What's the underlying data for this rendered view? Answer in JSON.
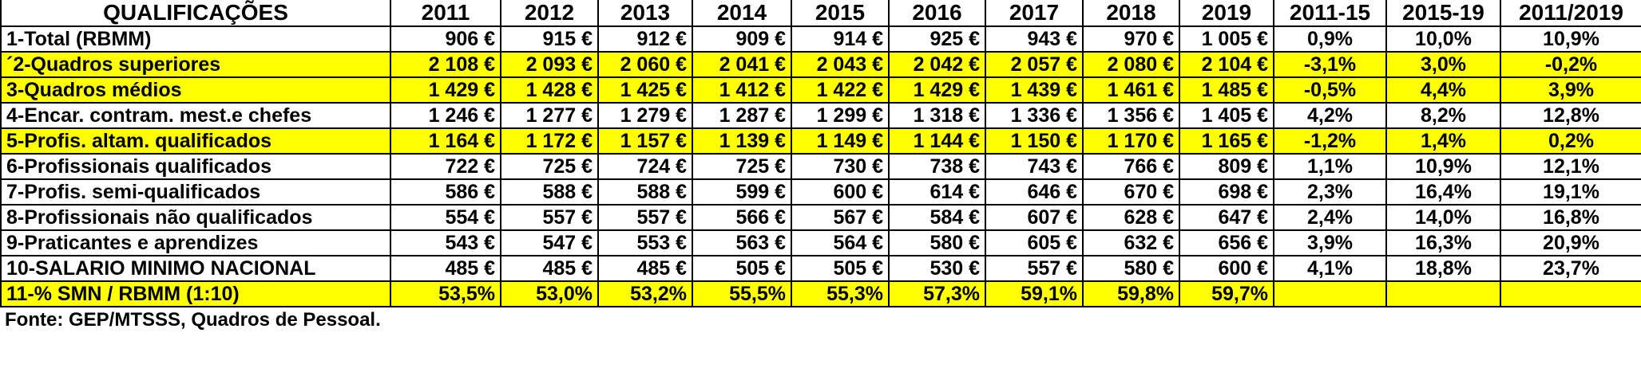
{
  "table": {
    "highlight_color": "#ffff00",
    "header": [
      "QUALIFICAÇÕES",
      "2011",
      "2012",
      "2013",
      "2014",
      "2015",
      "2016",
      "2017",
      "2018",
      "2019",
      "2011-15",
      "2015-19",
      "2011/2019"
    ],
    "rows": [
      {
        "highlighted": false,
        "cells": [
          "1-Total (RBMM)",
          "906 €",
          "915 €",
          "912 €",
          "909 €",
          "914 €",
          "925 €",
          "943 €",
          "970 €",
          "1 005 €",
          "0,9%",
          "10,0%",
          "10,9%"
        ]
      },
      {
        "highlighted": true,
        "cells": [
          "´2-Quadros superiores",
          "2 108 €",
          "2 093 €",
          "2 060 €",
          "2 041 €",
          "2 043 €",
          "2 042 €",
          "2 057 €",
          "2 080 €",
          "2 104 €",
          "-3,1%",
          "3,0%",
          "-0,2%"
        ]
      },
      {
        "highlighted": true,
        "cells": [
          "3-Quadros médios",
          "1 429 €",
          "1 428 €",
          "1 425 €",
          "1 412 €",
          "1 422 €",
          "1 429 €",
          "1 439 €",
          "1 461 €",
          "1 485 €",
          "-0,5%",
          "4,4%",
          "3,9%"
        ]
      },
      {
        "highlighted": false,
        "cells": [
          "4-Encar. contram. mest.e chefes",
          "1 246 €",
          "1 277 €",
          "1 279 €",
          "1 287 €",
          "1 299 €",
          "1 318 €",
          "1 336 €",
          "1 356 €",
          "1 405 €",
          "4,2%",
          "8,2%",
          "12,8%"
        ]
      },
      {
        "highlighted": true,
        "cells": [
          "5-Profis. altam. qualificados",
          "1 164 €",
          "1 172 €",
          "1 157 €",
          "1 139 €",
          "1 149 €",
          "1 144 €",
          "1 150 €",
          "1 170 €",
          "1 165 €",
          "-1,2%",
          "1,4%",
          "0,2%"
        ]
      },
      {
        "highlighted": false,
        "cells": [
          "6-Profissionais qualificados",
          "722 €",
          "725 €",
          "724 €",
          "725 €",
          "730 €",
          "738 €",
          "743 €",
          "766 €",
          "809 €",
          "1,1%",
          "10,9%",
          "12,1%"
        ]
      },
      {
        "highlighted": false,
        "cells": [
          "7-Profis. semi-qualificados",
          "586 €",
          "588 €",
          "588 €",
          "599 €",
          "600 €",
          "614 €",
          "646 €",
          "670 €",
          "698 €",
          "2,3%",
          "16,4%",
          "19,1%"
        ]
      },
      {
        "highlighted": false,
        "cells": [
          "8-Profissionais não qualificados",
          "554 €",
          "557 €",
          "557 €",
          "566 €",
          "567 €",
          "584 €",
          "607 €",
          "628 €",
          "647 €",
          "2,4%",
          "14,0%",
          "16,8%"
        ]
      },
      {
        "highlighted": false,
        "cells": [
          "9-Praticantes e aprendizes",
          "543 €",
          "547 €",
          "553 €",
          "563 €",
          "564 €",
          "580 €",
          "605 €",
          "632 €",
          "656 €",
          "3,9%",
          "16,3%",
          "20,9%"
        ]
      },
      {
        "highlighted": false,
        "cells": [
          "10-SALARIO MINIMO NACIONAL",
          "485 €",
          "485 €",
          "485 €",
          "505 €",
          "505 €",
          "530 €",
          "557 €",
          "580 €",
          "600 €",
          "4,1%",
          "18,8%",
          "23,7%"
        ]
      },
      {
        "highlighted": true,
        "cells": [
          "11-% SMN / RBMM (1:10)",
          "53,5%",
          "53,0%",
          "53,2%",
          "55,5%",
          "55,3%",
          "57,3%",
          "59,1%",
          "59,8%",
          "59,7%"
        ]
      }
    ],
    "source": "Fonte: GEP/MTSSS, Quadros de Pessoal."
  }
}
